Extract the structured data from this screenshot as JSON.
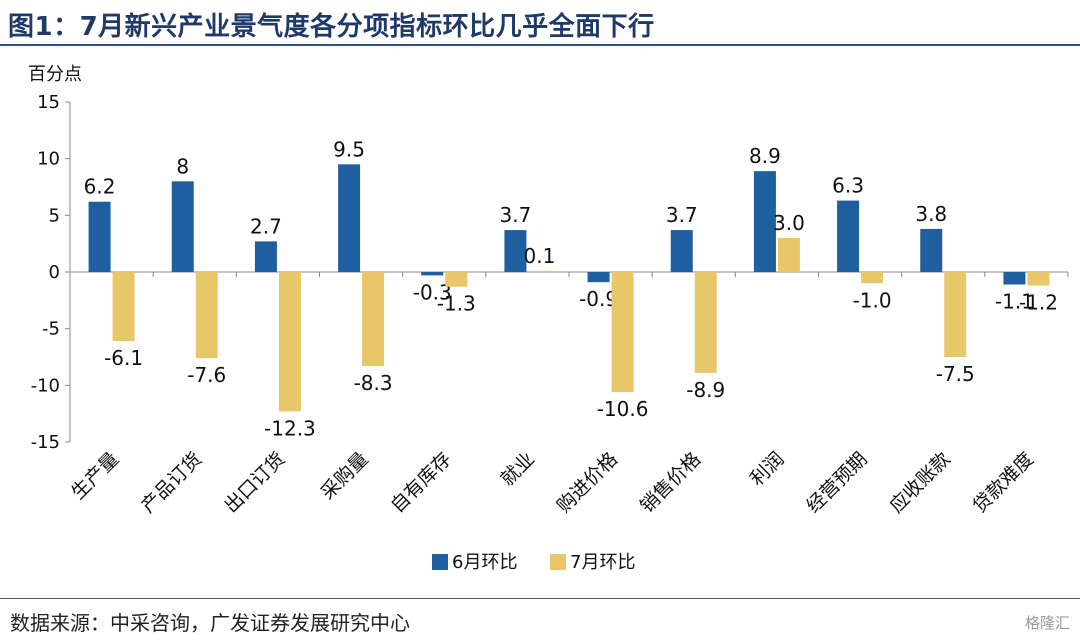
{
  "title": "图1：7月新兴产业景气度各分项指标环比几乎全面下行",
  "source": "数据来源：中采咨询，广发证券发展研究中心",
  "watermark": "格隆汇",
  "colors": {
    "series1": "#1f5fa0",
    "series2": "#e7c76a",
    "title": "#1f3a68"
  },
  "chart_data": {
    "type": "bar",
    "ylabel": "百分点",
    "ylim": [
      -15,
      15
    ],
    "yticks": [
      15,
      10,
      5,
      0,
      -5,
      -10,
      -15
    ],
    "grid": false,
    "legend_position": "bottom",
    "categories": [
      "生产量",
      "产品订货",
      "出口订货",
      "采购量",
      "自有库存",
      "就业",
      "购进价格",
      "销售价格",
      "利润",
      "经营预期",
      "应收账款",
      "贷款难度"
    ],
    "series": [
      {
        "name": "6月环比",
        "values": [
          6.2,
          8,
          2.7,
          9.5,
          -0.3,
          3.7,
          -0.9,
          3.7,
          8.9,
          6.3,
          3.8,
          -1.1
        ],
        "labels": [
          "6.2",
          "8",
          "2.7",
          "9.5",
          "-0.3",
          "3.7",
          "-0.9",
          "3.7",
          "8.9",
          "6.3",
          "3.8",
          "-1.1"
        ]
      },
      {
        "name": "7月环比",
        "values": [
          -6.1,
          -7.6,
          -12.3,
          -8.3,
          -1.3,
          0.1,
          -10.6,
          -8.9,
          3.0,
          -1.0,
          -7.5,
          -1.2
        ],
        "labels": [
          "-6.1",
          "-7.6",
          "-12.3",
          "-8.3",
          "-1.3",
          "0.1",
          "-10.6",
          "-8.9",
          "3.0",
          "-1.0",
          "-7.5",
          "-1.2"
        ]
      }
    ]
  }
}
